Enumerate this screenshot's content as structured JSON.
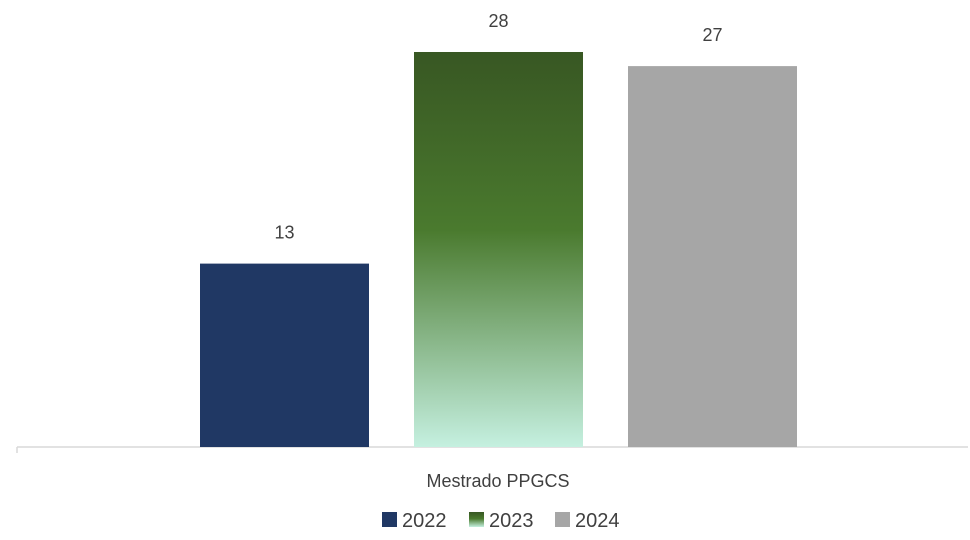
{
  "chart_data": {
    "type": "bar",
    "categories": [
      "Mestrado PPGCS"
    ],
    "series": [
      {
        "name": "2022",
        "values": [
          13
        ],
        "color": "#203864"
      },
      {
        "name": "2023",
        "values": [
          28
        ],
        "color": "#385723",
        "gradient_end": "#C5F0E0"
      },
      {
        "name": "2024",
        "values": [
          27
        ],
        "color": "#A6A6A6"
      }
    ],
    "title": "",
    "xlabel": "",
    "ylabel": "",
    "ylim": [
      0,
      30
    ],
    "grid": false,
    "legend": "bottom",
    "data_labels": true
  }
}
